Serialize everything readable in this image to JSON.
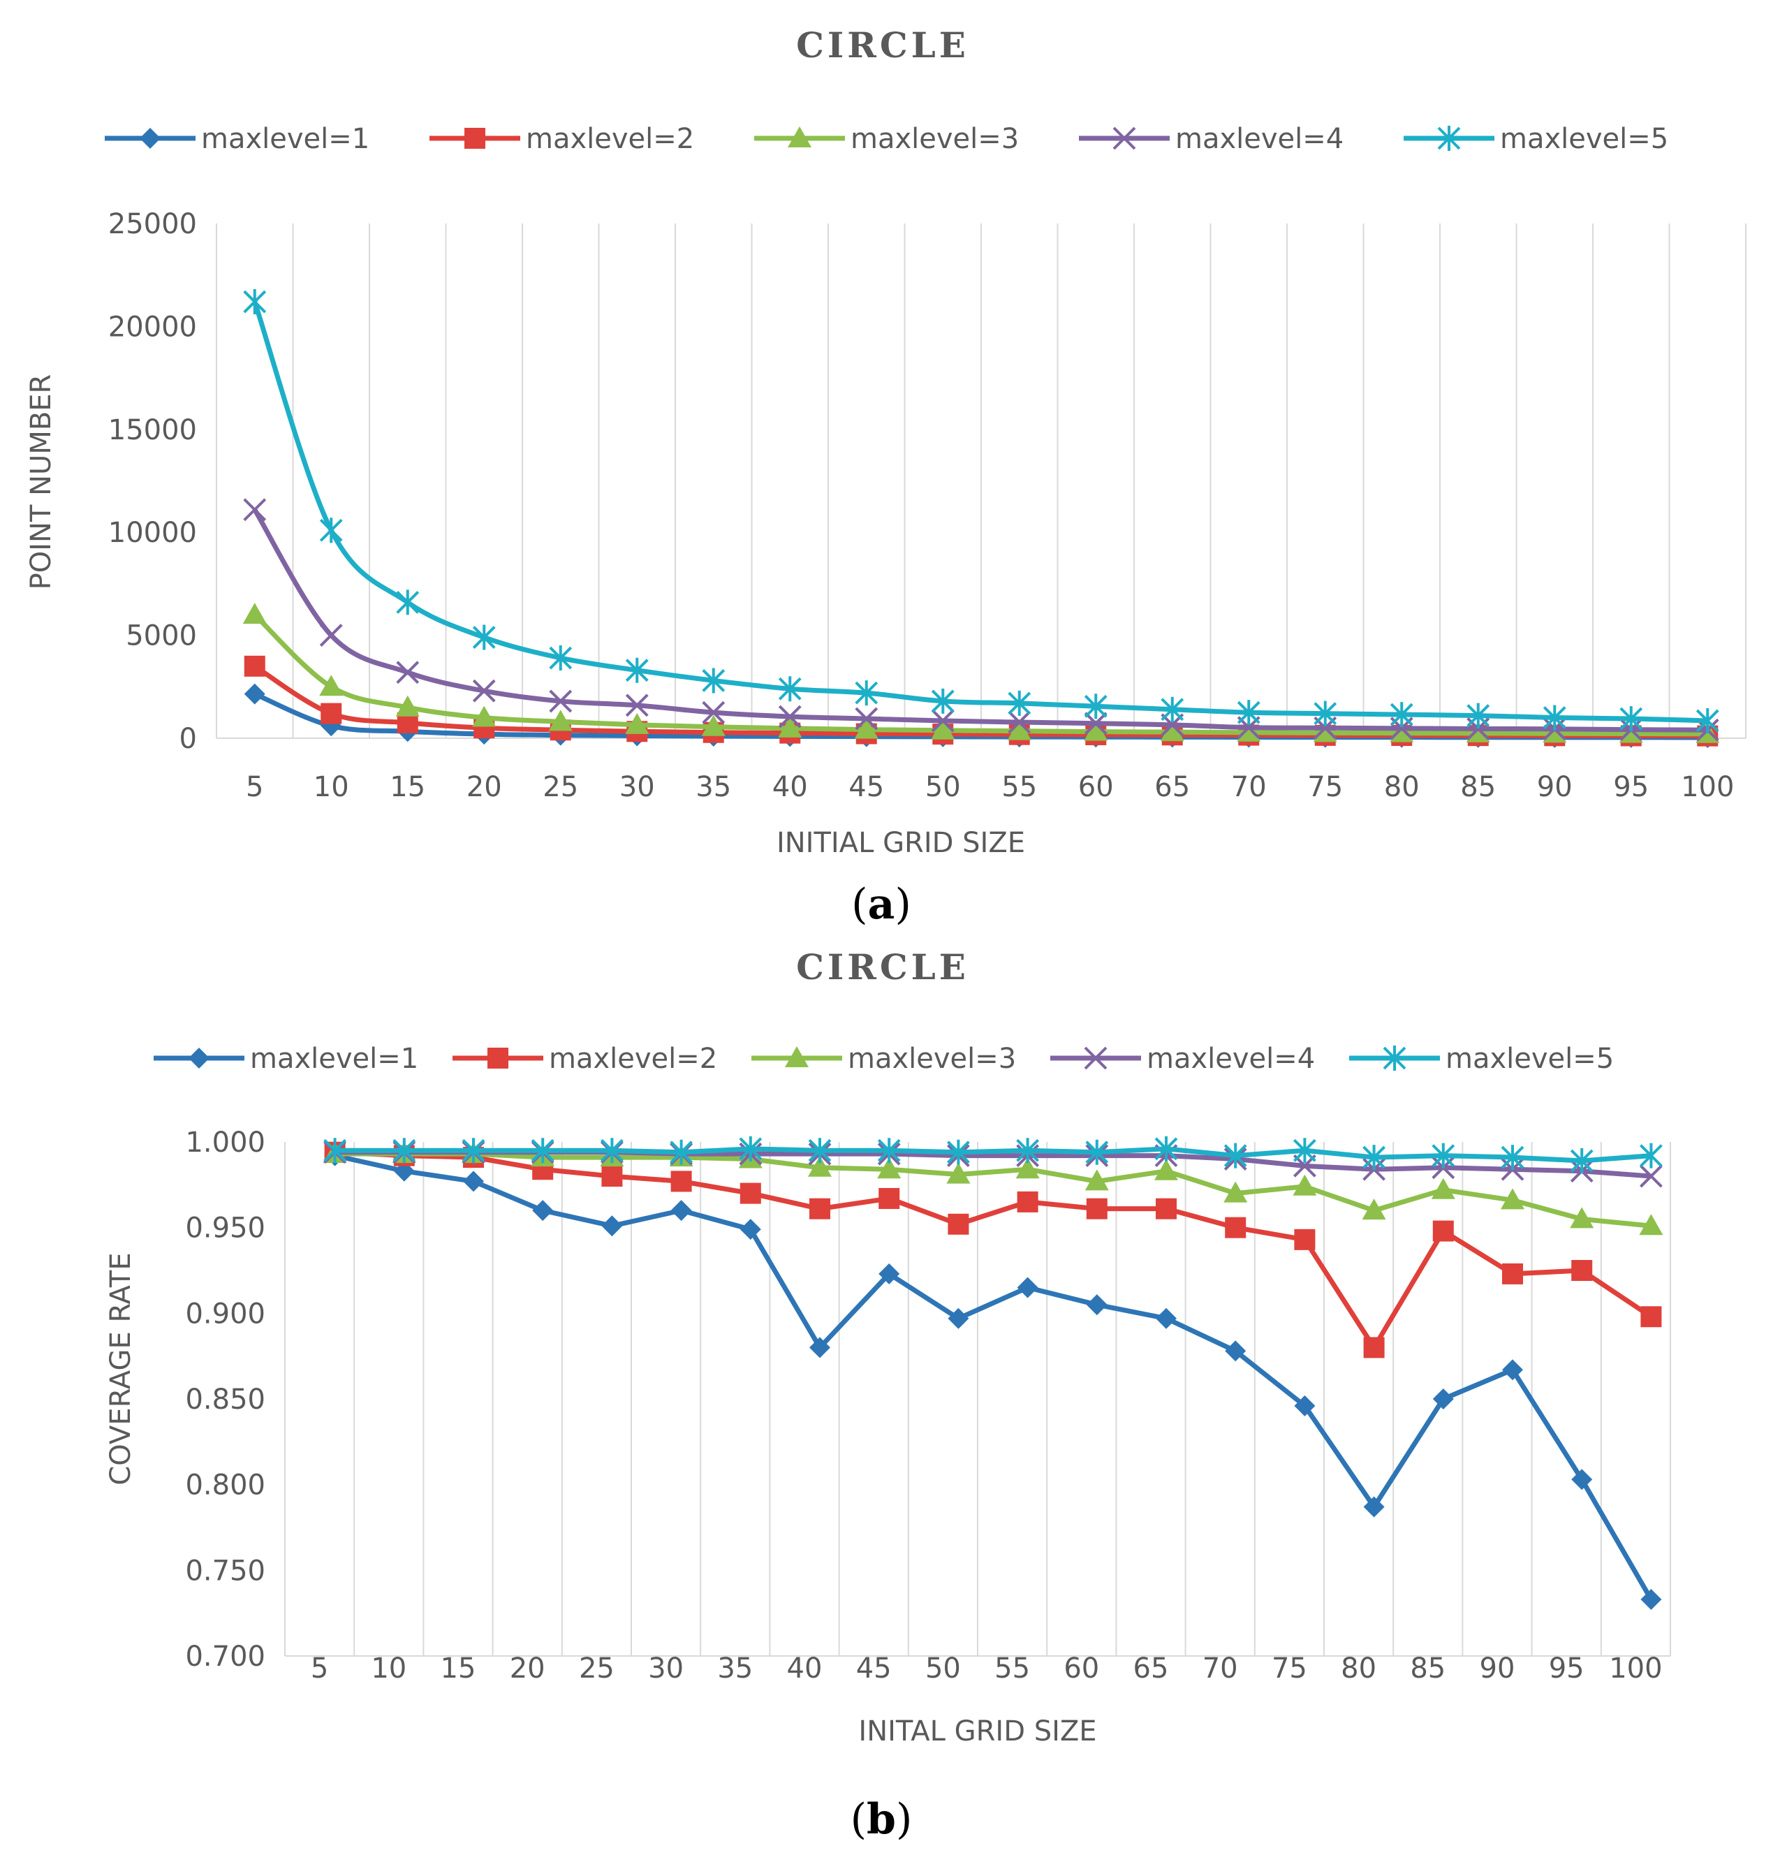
{
  "chart_data": [
    {
      "type": "line",
      "title": "CIRCLE",
      "panel_label": "a",
      "xlabel": "INITIAL GRID SIZE",
      "ylabel": "POINT NUMBER",
      "ylim": [
        0,
        25000
      ],
      "yticks": [
        "0",
        "5000",
        "10000",
        "15000",
        "20000",
        "25000"
      ],
      "categories": [
        "5",
        "10",
        "15",
        "20",
        "25",
        "30",
        "35",
        "40",
        "45",
        "50",
        "55",
        "60",
        "65",
        "70",
        "75",
        "80",
        "85",
        "90",
        "95",
        "100"
      ],
      "grid": "vertical",
      "legend_position": "top",
      "series": [
        {
          "name": "maxlevel=1",
          "color": "#2E75B6",
          "marker": "diamond",
          "values": [
            2150,
            600,
            330,
            200,
            150,
            120,
            100,
            90,
            80,
            70,
            65,
            60,
            55,
            50,
            48,
            45,
            43,
            40,
            38,
            35
          ]
        },
        {
          "name": "maxlevel=2",
          "color": "#E0403A",
          "marker": "square",
          "values": [
            3500,
            1200,
            750,
            500,
            400,
            330,
            280,
            250,
            220,
            200,
            180,
            170,
            160,
            150,
            140,
            135,
            130,
            125,
            120,
            115
          ]
        },
        {
          "name": "maxlevel=3",
          "color": "#8DBF4A",
          "marker": "triangle",
          "values": [
            6000,
            2500,
            1500,
            1000,
            800,
            650,
            550,
            480,
            420,
            380,
            350,
            320,
            300,
            280,
            260,
            250,
            240,
            230,
            220,
            210
          ]
        },
        {
          "name": "maxlevel=4",
          "color": "#8064A2",
          "marker": "x",
          "values": [
            11100,
            5000,
            3200,
            2300,
            1800,
            1600,
            1250,
            1050,
            950,
            850,
            780,
            720,
            650,
            520,
            500,
            480,
            460,
            450,
            420,
            400
          ]
        },
        {
          "name": "maxlevel=5",
          "color": "#1EAFC8",
          "marker": "star",
          "values": [
            21200,
            10100,
            6600,
            4900,
            3900,
            3300,
            2800,
            2400,
            2200,
            1800,
            1700,
            1550,
            1400,
            1250,
            1200,
            1150,
            1100,
            1000,
            950,
            850
          ]
        }
      ]
    },
    {
      "type": "line",
      "title": "CIRCLE",
      "panel_label": "b",
      "xlabel": "INITAL GRID SIZE",
      "ylabel": "COVERAGE RATE",
      "ylim": [
        0.7,
        1.0
      ],
      "yticks": [
        "0.700",
        "0.750",
        "0.800",
        "0.850",
        "0.900",
        "0.950",
        "1.000"
      ],
      "categories": [
        "5",
        "10",
        "15",
        "20",
        "25",
        "30",
        "35",
        "40",
        "45",
        "50",
        "55",
        "60",
        "65",
        "70",
        "75",
        "80",
        "85",
        "90",
        "95",
        "100"
      ],
      "grid": "vertical",
      "legend_position": "top",
      "series": [
        {
          "name": "maxlevel=1",
          "color": "#2E75B6",
          "marker": "diamond",
          "values": [
            0.992,
            0.983,
            0.977,
            0.96,
            0.951,
            0.96,
            0.949,
            0.88,
            0.923,
            0.897,
            0.915,
            0.905,
            0.897,
            0.878,
            0.846,
            0.787,
            0.85,
            0.867,
            0.803,
            0.733
          ]
        },
        {
          "name": "maxlevel=2",
          "color": "#E0403A",
          "marker": "square",
          "values": [
            0.994,
            0.992,
            0.991,
            0.984,
            0.98,
            0.977,
            0.97,
            0.961,
            0.967,
            0.952,
            0.965,
            0.961,
            0.961,
            0.95,
            0.943,
            0.88,
            0.948,
            0.923,
            0.925,
            0.898
          ]
        },
        {
          "name": "maxlevel=3",
          "color": "#8DBF4A",
          "marker": "triangle",
          "values": [
            0.993,
            0.993,
            0.993,
            0.991,
            0.991,
            0.991,
            0.99,
            0.985,
            0.984,
            0.981,
            0.984,
            0.977,
            0.983,
            0.97,
            0.974,
            0.96,
            0.972,
            0.966,
            0.955,
            0.951
          ]
        },
        {
          "name": "maxlevel=4",
          "color": "#8064A2",
          "marker": "x",
          "values": [
            0.994,
            0.994,
            0.994,
            0.994,
            0.994,
            0.993,
            0.993,
            0.993,
            0.993,
            0.992,
            0.992,
            0.992,
            0.992,
            0.99,
            0.986,
            0.984,
            0.985,
            0.984,
            0.983,
            0.98
          ]
        },
        {
          "name": "maxlevel=5",
          "color": "#1EAFC8",
          "marker": "star",
          "values": [
            0.995,
            0.995,
            0.995,
            0.995,
            0.995,
            0.994,
            0.996,
            0.995,
            0.995,
            0.994,
            0.995,
            0.994,
            0.996,
            0.992,
            0.995,
            0.991,
            0.992,
            0.991,
            0.989,
            0.992
          ]
        }
      ]
    }
  ]
}
